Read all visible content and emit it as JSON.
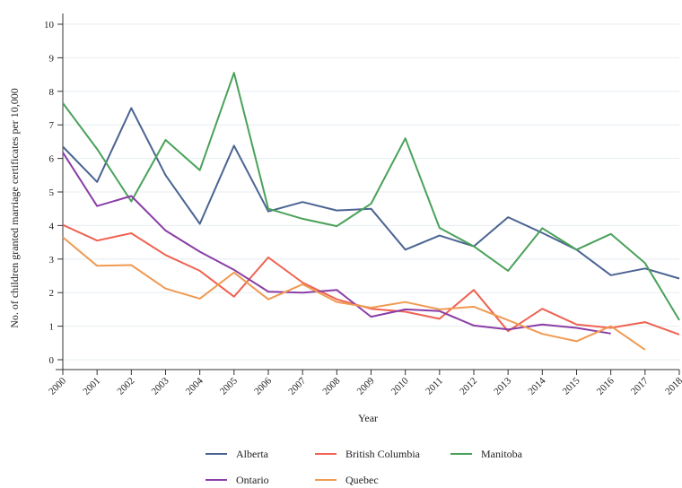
{
  "chart_data": {
    "type": "line",
    "xlabel": "Year",
    "ylabel": "No. of children granted marriage certificates per 10,000",
    "ylim": [
      0,
      10
    ],
    "y_ticks": [
      "0",
      "1",
      "2",
      "3",
      "4",
      "5",
      "6",
      "7",
      "8",
      "9",
      "10"
    ],
    "categories": [
      "2000",
      "2001",
      "2002",
      "2003",
      "2004",
      "2005",
      "2006",
      "2007",
      "2008",
      "2009",
      "2010",
      "2011",
      "2012",
      "2013",
      "2014",
      "2015",
      "2016",
      "2017",
      "2018"
    ],
    "grid": true,
    "legend_position": "bottom",
    "series": [
      {
        "name": "Alberta",
        "color": "#4a6491",
        "values": [
          6.35,
          5.3,
          7.5,
          5.5,
          4.05,
          6.38,
          4.42,
          4.7,
          4.45,
          4.5,
          3.28,
          3.7,
          3.38,
          4.25,
          3.78,
          3.28,
          2.52,
          2.72,
          2.42
        ]
      },
      {
        "name": "British Columbia",
        "color": "#ee6352",
        "values": [
          4.02,
          3.55,
          3.77,
          3.12,
          2.65,
          1.88,
          3.05,
          2.3,
          1.8,
          1.52,
          1.43,
          1.22,
          2.08,
          0.85,
          1.52,
          1.05,
          0.95,
          1.12,
          0.75
        ]
      },
      {
        "name": "Manitoba",
        "color": "#4aa15a",
        "values": [
          7.65,
          6.28,
          4.72,
          6.55,
          5.65,
          8.55,
          4.5,
          4.2,
          3.98,
          4.65,
          6.6,
          3.93,
          3.38,
          2.65,
          3.92,
          3.28,
          3.75,
          2.88,
          1.18
        ]
      },
      {
        "name": "Ontario",
        "color": "#8a3ea6",
        "values": [
          6.18,
          4.58,
          4.88,
          3.85,
          3.22,
          2.68,
          2.03,
          2.0,
          2.08,
          1.28,
          1.5,
          1.45,
          1.02,
          0.9,
          1.05,
          0.95,
          0.78,
          null,
          null
        ]
      },
      {
        "name": "Quebec",
        "color": "#f09a52",
        "values": [
          3.65,
          2.8,
          2.82,
          2.12,
          1.82,
          2.6,
          1.8,
          2.25,
          1.72,
          1.55,
          1.72,
          1.5,
          1.58,
          1.18,
          0.77,
          0.55,
          1.0,
          0.3,
          null
        ]
      }
    ]
  }
}
